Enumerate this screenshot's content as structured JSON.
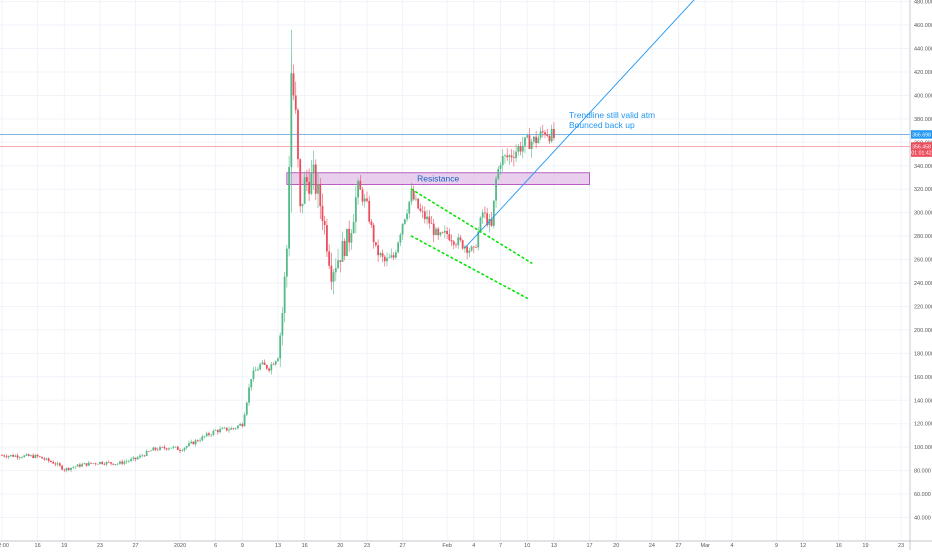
{
  "colors": {
    "up": "#53b987",
    "down": "#eb4d5c",
    "trendline": "#2196f3",
    "channel": "#00e600",
    "resistance_fill": "#e1bee7",
    "resistance_stroke": "#9c27b0",
    "resistance_text": "#1565c0",
    "annotation_text": "#2196f3",
    "blue_hline": "#6fa8dc",
    "red_hline": "#f4a0a8",
    "badge_blue": "#2196f3",
    "badge_red": "#eb4d5c",
    "axis_text": "#555555",
    "grid": "#f0f3fa"
  },
  "chart_data": {
    "type": "candlestick",
    "y_axis": {
      "range": [
        40,
        500
      ],
      "ticks": [
        "500.000",
        "480.000",
        "460.000",
        "440.000",
        "420.000",
        "400.000",
        "380.000",
        "360.000",
        "340.000",
        "320.000",
        "300.000",
        "280.000",
        "260.000",
        "240.000",
        "220.000",
        "200.000",
        "180.000",
        "160.000",
        "140.000",
        "120.000",
        "100.000",
        "80.000",
        "60.000",
        "40.000"
      ]
    },
    "x_axis": {
      "ticks": [
        {
          "label": "12:00",
          "t": 0
        },
        {
          "label": "16",
          "t": 8
        },
        {
          "label": "19",
          "t": 14
        },
        {
          "label": "23",
          "t": 22
        },
        {
          "label": "27",
          "t": 30
        },
        {
          "label": "2020",
          "t": 40
        },
        {
          "label": "6",
          "t": 48
        },
        {
          "label": "9",
          "t": 54
        },
        {
          "label": "13",
          "t": 62
        },
        {
          "label": "16",
          "t": 68
        },
        {
          "label": "20",
          "t": 76
        },
        {
          "label": "23",
          "t": 82
        },
        {
          "label": "27",
          "t": 90
        },
        {
          "label": "Feb",
          "t": 100
        },
        {
          "label": "4",
          "t": 106
        },
        {
          "label": "7",
          "t": 112
        },
        {
          "label": "10",
          "t": 118
        },
        {
          "label": "13",
          "t": 124
        },
        {
          "label": "17",
          "t": 132
        },
        {
          "label": "20",
          "t": 138
        },
        {
          "label": "24",
          "t": 146
        },
        {
          "label": "27",
          "t": 152
        },
        {
          "label": "Mar",
          "t": 158
        },
        {
          "label": "4",
          "t": 164
        },
        {
          "label": "9",
          "t": 174
        },
        {
          "label": "12",
          "t": 180
        },
        {
          "label": "16",
          "t": 188
        },
        {
          "label": "19",
          "t": 194
        },
        {
          "label": "23",
          "t": 202
        }
      ]
    },
    "price_path": [
      [
        0,
        93
      ],
      [
        8,
        92
      ],
      [
        12,
        86
      ],
      [
        14,
        81
      ],
      [
        18,
        85
      ],
      [
        22,
        87
      ],
      [
        26,
        86
      ],
      [
        30,
        90
      ],
      [
        34,
        98
      ],
      [
        38,
        100
      ],
      [
        40,
        98
      ],
      [
        44,
        106
      ],
      [
        48,
        114
      ],
      [
        52,
        116
      ],
      [
        54,
        120
      ],
      [
        56,
        160
      ],
      [
        58,
        170
      ],
      [
        60,
        168
      ],
      [
        62,
        178
      ],
      [
        63,
        215
      ],
      [
        64,
        270
      ],
      [
        65,
        420
      ],
      [
        66,
        380
      ],
      [
        67,
        300
      ],
      [
        68,
        325
      ],
      [
        70,
        330
      ],
      [
        72,
        300
      ],
      [
        73,
        275
      ],
      [
        74,
        250
      ],
      [
        76,
        265
      ],
      [
        78,
        280
      ],
      [
        80,
        322
      ],
      [
        82,
        305
      ],
      [
        84,
        268
      ],
      [
        86,
        258
      ],
      [
        88,
        262
      ],
      [
        90,
        292
      ],
      [
        92,
        315
      ],
      [
        94,
        300
      ],
      [
        96,
        292
      ],
      [
        98,
        278
      ],
      [
        100,
        282
      ],
      [
        102,
        276
      ],
      [
        104,
        272
      ],
      [
        106,
        266
      ],
      [
        108,
        300
      ],
      [
        110,
        287
      ],
      [
        111,
        328
      ],
      [
        112,
        345
      ],
      [
        114,
        348
      ],
      [
        116,
        355
      ],
      [
        118,
        360
      ],
      [
        120,
        362
      ],
      [
        122,
        370
      ],
      [
        124,
        364
      ]
    ],
    "annotations": {
      "trendline_text": [
        "Trendline still valid atm",
        "Bounced back up"
      ],
      "resistance_label": "Resistance"
    },
    "resistance_zone": {
      "t_start": 64,
      "t_end": 132,
      "low": 324,
      "high": 334
    },
    "trendline": {
      "t1": 104,
      "p1": 270,
      "t2": 160,
      "p2": 500
    },
    "channel_upper": {
      "t1": 92,
      "p1": 320,
      "t2": 119,
      "p2": 257
    },
    "channel_lower": {
      "t1": 92,
      "p1": 280,
      "t2": 118,
      "p2": 227
    },
    "hlines": [
      {
        "name": "current-price-line",
        "price": 366.698,
        "color_key": "blue_hline"
      },
      {
        "name": "countdown-line",
        "price": 356.458,
        "color_key": "red_hline"
      }
    ],
    "badges": [
      {
        "name": "price-badge-blue",
        "label": "366.698",
        "price": 366.698,
        "color_key": "badge_blue"
      },
      {
        "name": "price-badge-red",
        "label": "356.458",
        "price": 356.458,
        "color_key": "badge_red"
      },
      {
        "name": "countdown-badge",
        "label": "01:01:42",
        "price": 351.2,
        "color_key": "badge_red"
      }
    ]
  }
}
